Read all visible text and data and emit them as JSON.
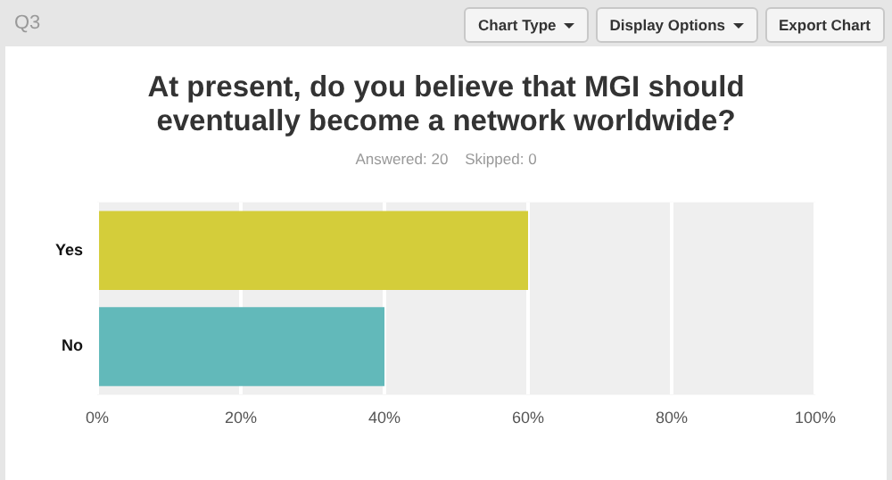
{
  "chart_data": {
    "type": "bar",
    "orientation": "horizontal",
    "title": "At present, do you believe that MGI should eventually become a network worldwide?",
    "subtitle": "Answered: 20    Skipped: 0",
    "annotations": [
      "Q3",
      "Chart Type",
      "Display Options",
      "Export Chart"
    ],
    "categories": [
      "Yes",
      "No"
    ],
    "values": [
      60,
      40
    ],
    "colors": [
      "#d4cd3a",
      "#62b9ba"
    ],
    "xlim": [
      0,
      100
    ],
    "xticks": [
      {
        "value": 0,
        "label": "0%"
      },
      {
        "value": 20,
        "label": "20%"
      },
      {
        "value": 40,
        "label": "40%"
      },
      {
        "value": 60,
        "label": "60%"
      },
      {
        "value": 80,
        "label": "80%"
      },
      {
        "value": 100,
        "label": "100%"
      }
    ],
    "grid": "x",
    "legend": false
  }
}
